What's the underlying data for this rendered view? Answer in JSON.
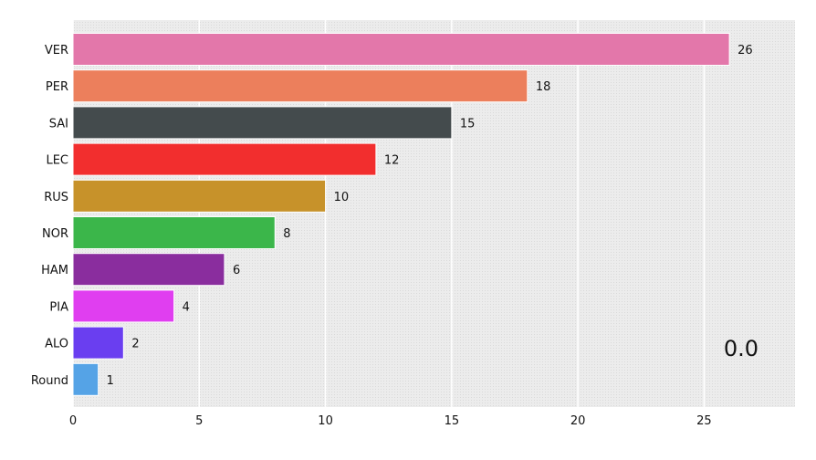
{
  "chart_data": {
    "type": "bar",
    "orientation": "horizontal",
    "categories": [
      "VER",
      "PER",
      "SAI",
      "LEC",
      "RUS",
      "NOR",
      "HAM",
      "PIA",
      "ALO",
      "Round"
    ],
    "values": [
      26,
      18,
      15,
      12,
      10,
      8,
      6,
      4,
      2,
      1
    ],
    "value_labels": [
      "26",
      "18",
      "15",
      "12",
      "10",
      "8",
      "6",
      "4",
      "2",
      "1"
    ],
    "colors": [
      "#e377aa",
      "#ec7f5c",
      "#444b4d",
      "#f22e2e",
      "#c7922a",
      "#3bb64a",
      "#8a2d9e",
      "#e03ef0",
      "#6a3ef0",
      "#55a3e6"
    ],
    "x_ticks": [
      "0",
      "5",
      "10",
      "15",
      "20",
      "25"
    ],
    "xlim": [
      0,
      28.6
    ],
    "grid": true,
    "background": "#ebebeb",
    "title": "",
    "xlabel": "",
    "ylabel": "",
    "annotation": "0.0"
  }
}
